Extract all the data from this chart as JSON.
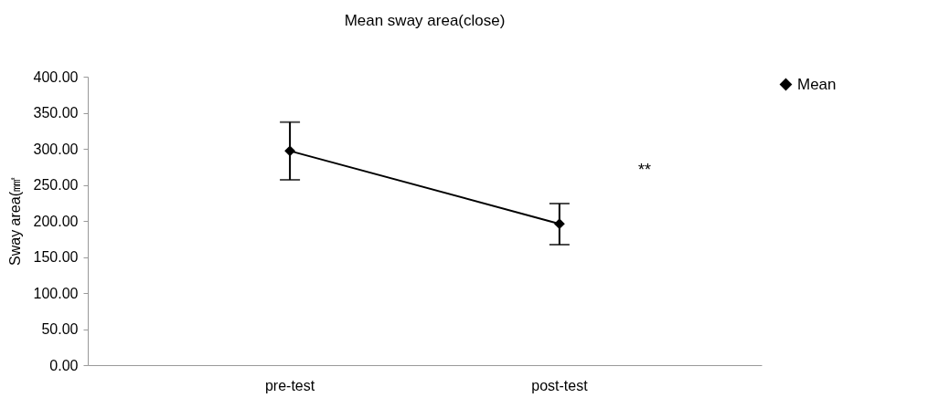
{
  "chart_data": {
    "type": "line",
    "title": "Mean sway area(close)",
    "ylabel": "Sway area(㎟",
    "categories": [
      "pre-test",
      "post-test"
    ],
    "series": [
      {
        "name": "Mean",
        "color": "#000000",
        "values": [
          297,
          196
        ],
        "errors": [
          [
            257,
            337
          ],
          [
            167,
            224
          ]
        ]
      }
    ],
    "ylim": [
      0,
      400
    ],
    "yticks": [
      {
        "value": 0,
        "label": "0.00"
      },
      {
        "value": 50,
        "label": "50.00"
      },
      {
        "value": 100,
        "label": "100.00"
      },
      {
        "value": 150,
        "label": "150.00"
      },
      {
        "value": 200,
        "label": "200.00"
      },
      {
        "value": 250,
        "label": "250.00"
      },
      {
        "value": 300,
        "label": "300.00"
      },
      {
        "value": 350,
        "label": "350.00"
      },
      {
        "value": 400,
        "label": "400.00"
      }
    ],
    "annotations": [
      "**"
    ],
    "marker": "diamond",
    "line_style": "solid",
    "legend": "right",
    "grid": false
  }
}
